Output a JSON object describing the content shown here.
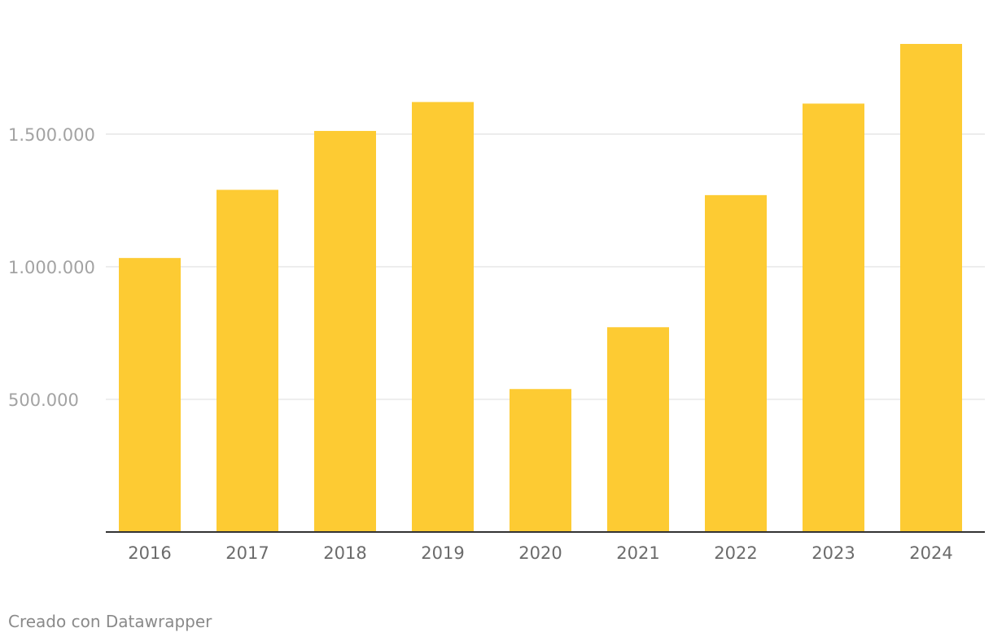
{
  "chart_data": {
    "type": "bar",
    "categories": [
      "2016",
      "2017",
      "2018",
      "2019",
      "2020",
      "2021",
      "2022",
      "2023",
      "2024"
    ],
    "values": [
      1033000,
      1290000,
      1512000,
      1621000,
      539000,
      772000,
      1270000,
      1615000,
      1840000
    ],
    "title": "",
    "xlabel": "",
    "ylabel": "",
    "ylim": [
      0,
      1840000
    ],
    "yticks": [
      500000,
      1000000,
      1500000
    ],
    "ytick_labels": [
      "500.000",
      "1.000.000",
      "1.500.000"
    ],
    "grid": true,
    "colors": {
      "bar": "#fdcb33",
      "grid": "#e0e0e0",
      "baseline": "#333333"
    }
  },
  "footer": {
    "credit": "Creado con Datawrapper"
  }
}
